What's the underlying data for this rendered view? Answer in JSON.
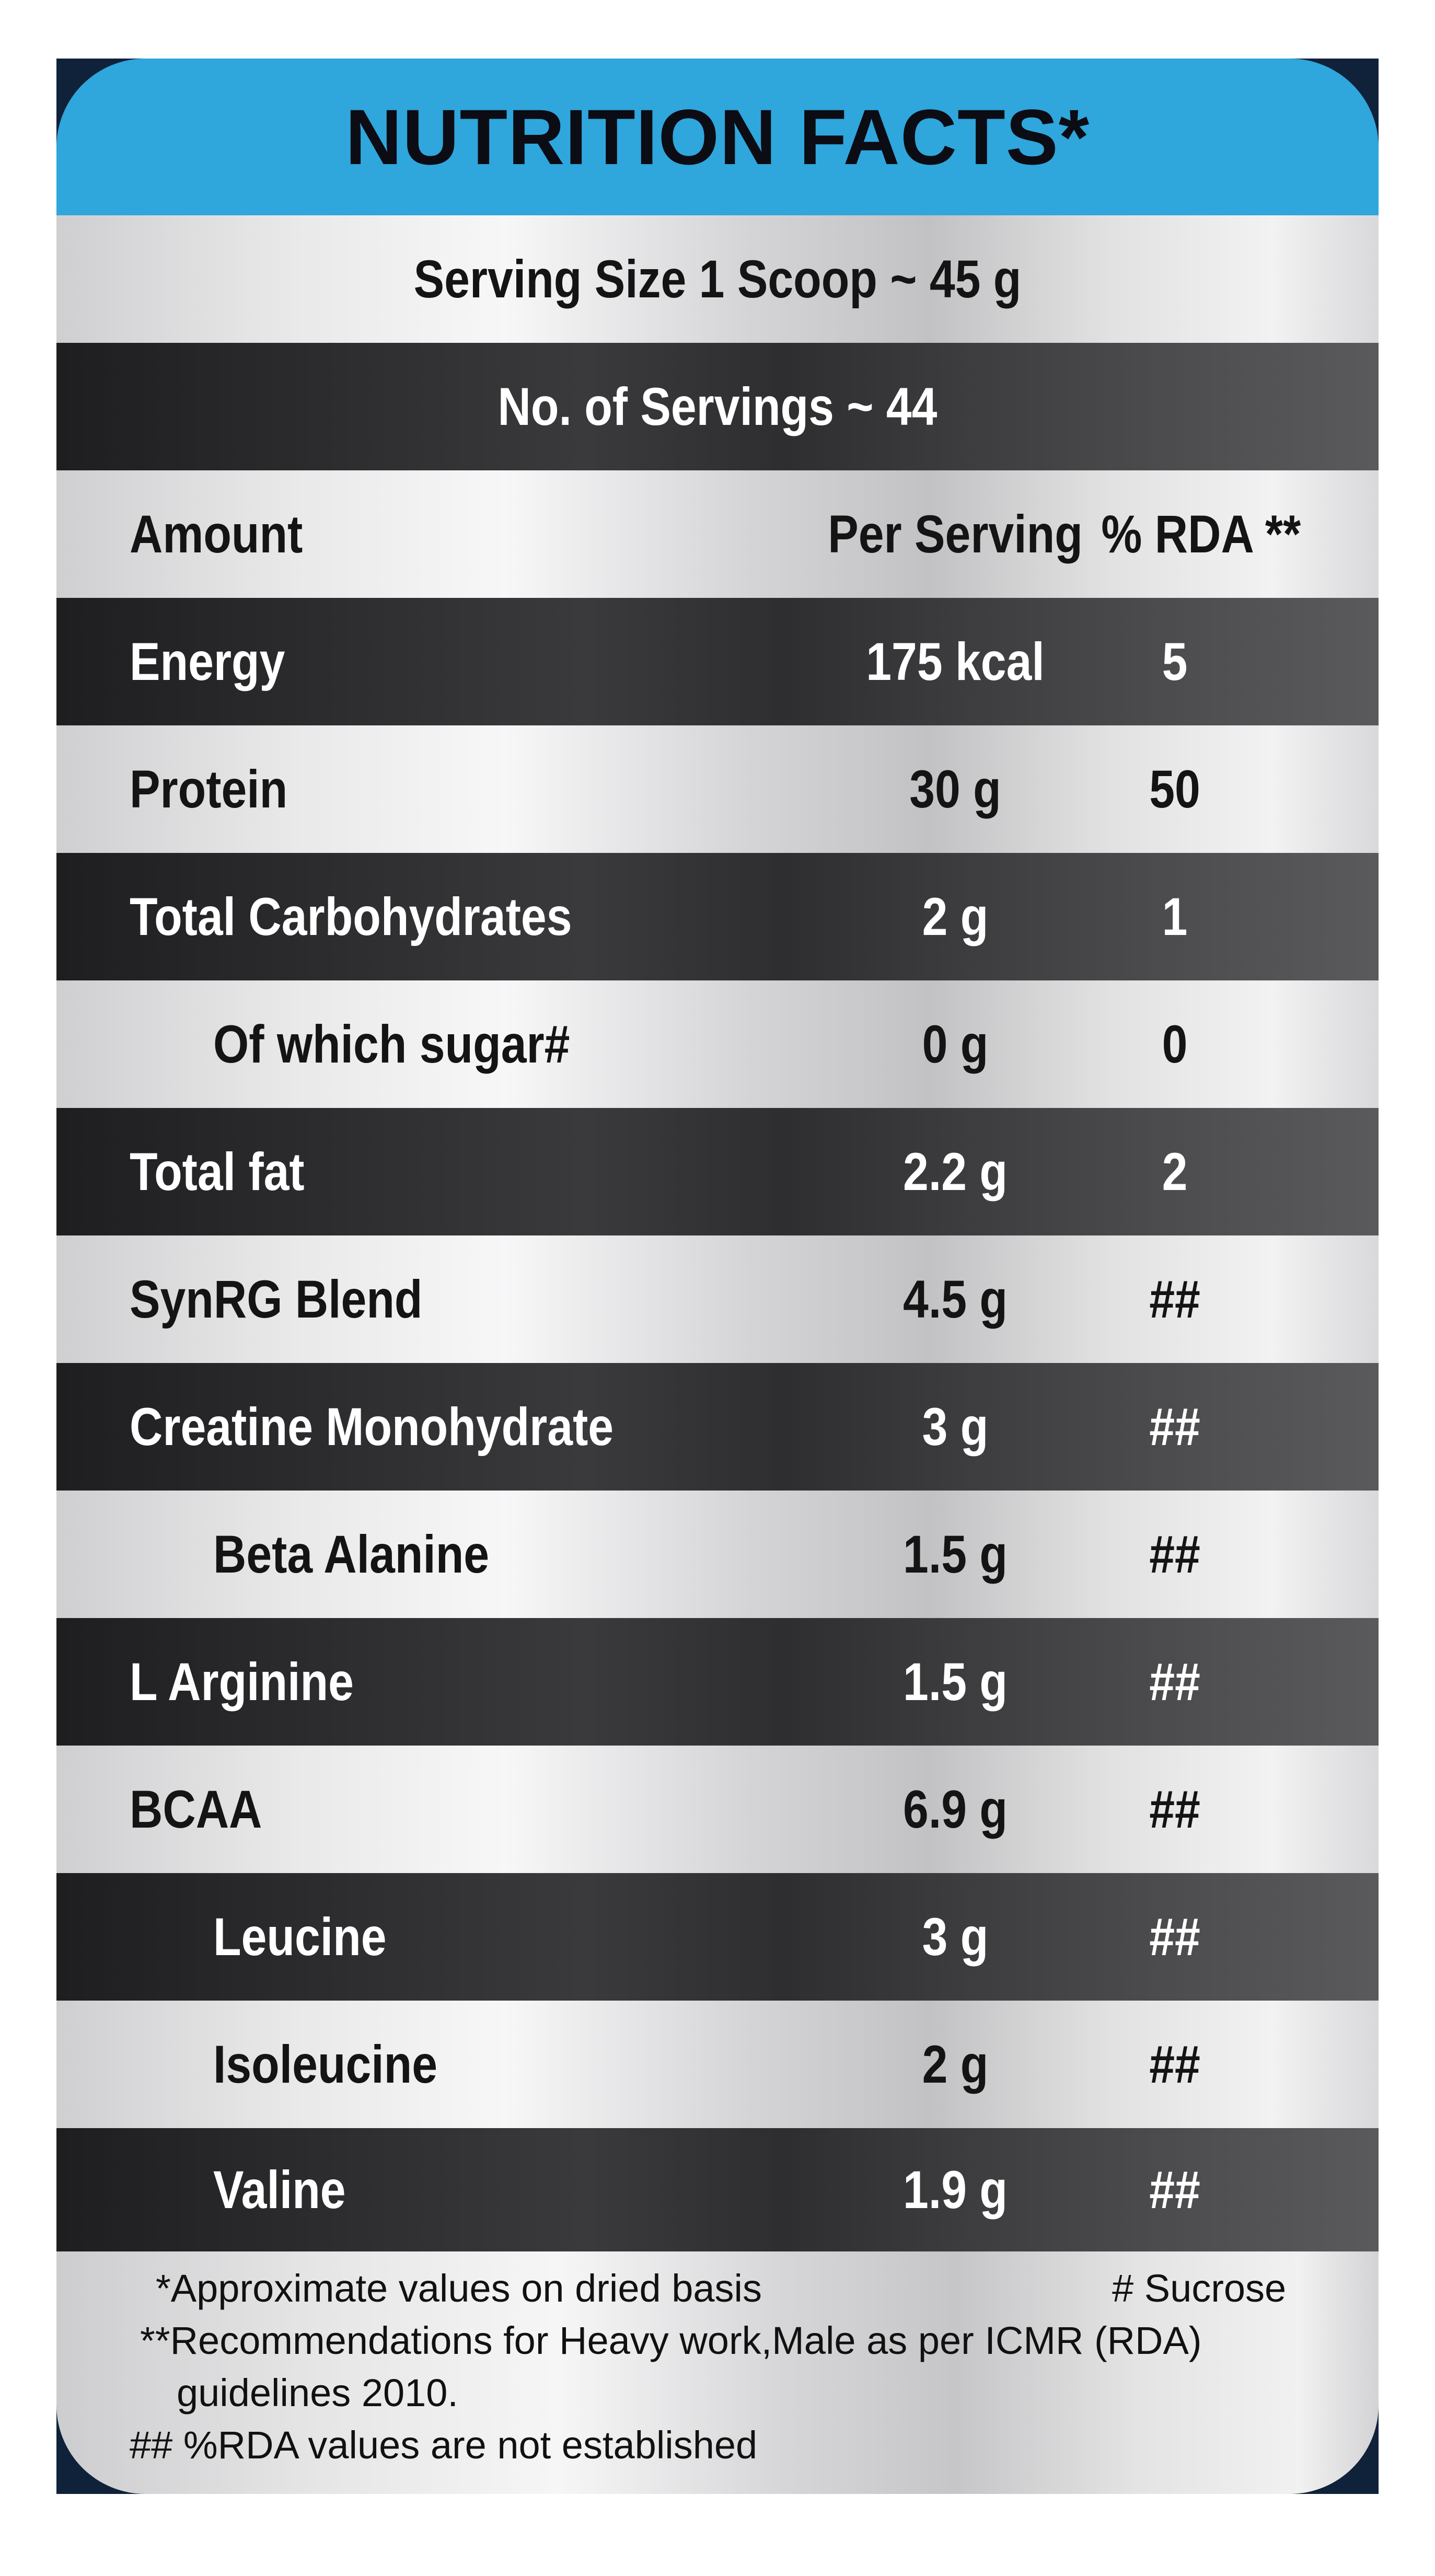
{
  "header": {
    "title": "NUTRITION FACTS*"
  },
  "serving_size": "Serving Size 1 Scoop ~ 45 g",
  "servings_count": "No. of Servings ~ 44",
  "columns": {
    "amount": "Amount",
    "per_serving": "Per Serving",
    "rda": "% RDA **"
  },
  "rows": [
    {
      "name": "Energy",
      "per_serving": "175 kcal",
      "rda": "5"
    },
    {
      "name": "Protein",
      "per_serving": "30 g",
      "rda": "50"
    },
    {
      "name": "Total Carbohydrates",
      "per_serving": "2 g",
      "rda": "1"
    },
    {
      "name": "Of which sugar#",
      "per_serving": "0 g",
      "rda": "0"
    },
    {
      "name": "Total fat",
      "per_serving": "2.2 g",
      "rda": "2"
    },
    {
      "name": "SynRG Blend",
      "per_serving": "4.5 g",
      "rda": "##"
    },
    {
      "name": "Creatine Monohydrate",
      "per_serving": "3 g",
      "rda": "##"
    },
    {
      "name": "Beta Alanine",
      "per_serving": "1.5 g",
      "rda": "##"
    },
    {
      "name": "L Arginine",
      "per_serving": "1.5 g",
      "rda": "##"
    },
    {
      "name": "BCAA",
      "per_serving": "6.9 g",
      "rda": "##"
    },
    {
      "name": "Leucine",
      "per_serving": "3 g",
      "rda": "##"
    },
    {
      "name": "Isoleucine",
      "per_serving": "2 g",
      "rda": "##"
    },
    {
      "name": "Valine",
      "per_serving": "1.9 g",
      "rda": "##"
    }
  ],
  "footnotes": {
    "approx": "*Approximate values on dried basis",
    "sucrose": "# Sucrose",
    "recommend_line1": "**Recommendations for Heavy work,Male as per ICMR (RDA)",
    "recommend_line2": "guidelines 2010.",
    "not_established": "## %RDA values are not established"
  }
}
